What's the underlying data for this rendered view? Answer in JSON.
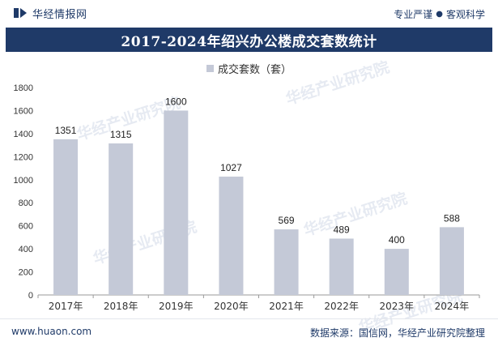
{
  "header": {
    "brand": "华经情报网",
    "slogan_left": "专业严谨",
    "slogan_sep": "●",
    "slogan_right": "客观科学"
  },
  "footer": {
    "site": "www.huaon.com",
    "source": "数据来源：国信网，华经产业研究院整理"
  },
  "watermark": "华经产业研究院",
  "colors": {
    "brand": "#1f3a68",
    "bar": "#c4c9d7"
  },
  "chart_data": {
    "type": "bar",
    "title": "2017-2024年绍兴办公楼成交套数统计",
    "legend": [
      "成交套数（套）"
    ],
    "categories": [
      "2017年",
      "2018年",
      "2019年",
      "2020年",
      "2021年",
      "2022年",
      "2023年",
      "2024年"
    ],
    "values": [
      1351,
      1315,
      1600,
      1027,
      569,
      489,
      400,
      588
    ],
    "labels": [
      "1351",
      "1315",
      "1600",
      "1027",
      "569",
      "489",
      "400",
      "588"
    ],
    "ylim": [
      0,
      1800
    ],
    "yticks": [
      "0",
      "200",
      "400",
      "600",
      "800",
      "1000",
      "1200",
      "1400",
      "1600",
      "1800"
    ],
    "xlabel": "",
    "ylabel": "",
    "grid": false
  }
}
